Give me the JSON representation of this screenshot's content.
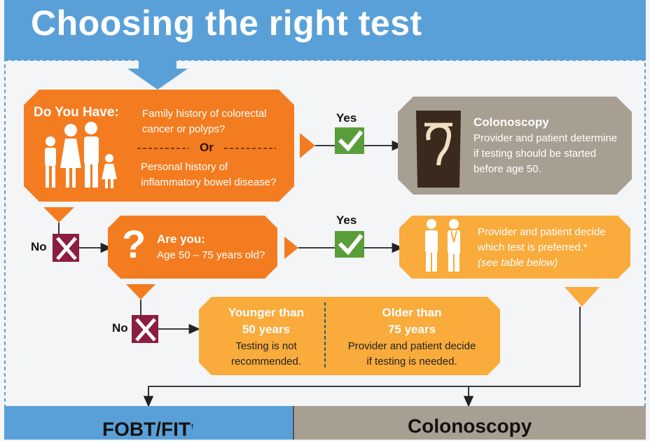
{
  "title": "Choosing the right test",
  "colors": {
    "header_blue": "#5aa0d8",
    "orange": "#f47c20",
    "light_orange": "#f9ab3c",
    "taupe": "#a89f93",
    "maroon": "#8c1d40",
    "green": "#5a9e3a"
  },
  "q1": {
    "heading": "Do You Have:",
    "line1": "Family history of colorectal",
    "line2": "cancer or polyps?",
    "or": "Or",
    "line3": "Personal history of",
    "line4": "inflammatory bowel disease?",
    "icon": "family-icon"
  },
  "yes1": "Yes",
  "colonoscopy_box": {
    "title": "Colonoscopy",
    "line1": "Provider and patient determine",
    "line2": "if testing should be started",
    "line3": "before age 50.",
    "icon": "colon-icon"
  },
  "no1": "No",
  "q2": {
    "symbol": "?",
    "heading": "Are you:",
    "line1": "Age 50 – 75 years old?"
  },
  "yes2": "Yes",
  "decide_box": {
    "line1": "Provider and patient decide",
    "line2": "which test is preferred.*",
    "line3": "(see table below)",
    "icon": "doctor-patient-icon"
  },
  "no2": "No",
  "age_box": {
    "younger_title1": "Younger than",
    "younger_title2": "50 years",
    "younger_line1": "Testing is not",
    "younger_line2": "recommended.",
    "older_title1": "Older than",
    "older_title2": "75 years",
    "older_line1": "Provider and patient decide",
    "older_line2": "if testing is needed."
  },
  "bottom": {
    "left_label": "FOBT/FIT",
    "left_sup": "†",
    "right_label": "Colonoscopy"
  }
}
